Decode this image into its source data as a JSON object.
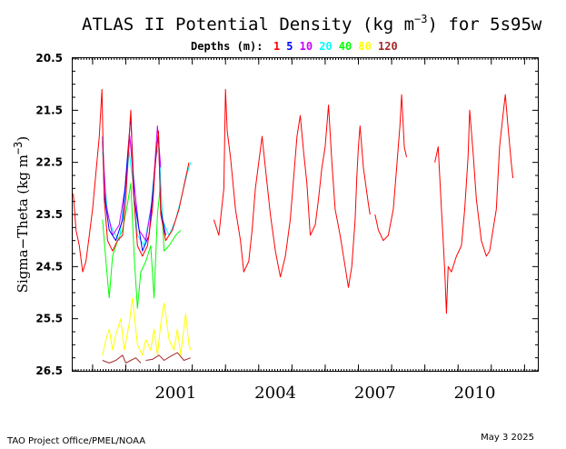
{
  "chart_data": {
    "type": "line",
    "title_prefix": "ATLAS II Potential Density (kg m",
    "title_exp": "−3",
    "title_suffix": ") for 5s95w",
    "ylabel_prefix": "Sigma−Theta (kg m",
    "ylabel_exp": "−3",
    "ylabel_suffix": ")",
    "depth_label": "Depths (m):",
    "ylim": [
      26.5,
      20.5
    ],
    "y_inverted": true,
    "y_ticks": [
      "20.5",
      "21.5",
      "22.5",
      "23.5",
      "24.5",
      "25.5",
      "26.5"
    ],
    "xlim": [
      1998.4,
      2012.4
    ],
    "x_ticks": [
      "2001",
      "2004",
      "2007",
      "2010"
    ],
    "series": [
      {
        "name": "1",
        "color": "#ff0000",
        "segments": [
          [
            [
              1998.42,
              23.1
            ],
            [
              1998.5,
              23.8
            ],
            [
              1998.6,
              24.1
            ],
            [
              1998.7,
              24.6
            ],
            [
              1998.8,
              24.4
            ],
            [
              1998.9,
              23.9
            ],
            [
              1999.0,
              23.4
            ],
            [
              1999.1,
              22.7
            ],
            [
              1999.2,
              22.0
            ],
            [
              1999.28,
              21.1
            ],
            [
              1999.35,
              23.2
            ],
            [
              1999.45,
              24.0
            ],
            [
              1999.6,
              24.2
            ],
            [
              1999.75,
              24.0
            ],
            [
              1999.9,
              23.9
            ],
            [
              2000.0,
              23.2
            ],
            [
              2000.1,
              22.0
            ],
            [
              2000.15,
              21.5
            ],
            [
              2000.22,
              23.0
            ],
            [
              2000.35,
              24.1
            ],
            [
              2000.5,
              24.3
            ],
            [
              2000.65,
              24.1
            ],
            [
              2000.8,
              23.4
            ],
            [
              2000.9,
              22.4
            ],
            [
              2000.98,
              21.9
            ],
            [
              2001.05,
              23.5
            ],
            [
              2001.2,
              24.0
            ],
            [
              2001.4,
              23.8
            ],
            [
              2001.6,
              23.4
            ],
            [
              2001.8,
              22.8
            ],
            [
              2001.9,
              22.5
            ]
          ],
          [
            [
              2002.65,
              23.6
            ],
            [
              2002.8,
              23.9
            ],
            [
              2002.95,
              23.0
            ],
            [
              2003.0,
              21.1
            ],
            [
              2003.05,
              21.9
            ],
            [
              2003.15,
              22.4
            ],
            [
              2003.3,
              23.4
            ],
            [
              2003.45,
              24.0
            ],
            [
              2003.55,
              24.6
            ],
            [
              2003.7,
              24.4
            ],
            [
              2003.8,
              23.8
            ],
            [
              2003.9,
              23.0
            ],
            [
              2004.0,
              22.5
            ],
            [
              2004.1,
              22.0
            ],
            [
              2004.2,
              22.6
            ],
            [
              2004.35,
              23.5
            ],
            [
              2004.5,
              24.2
            ],
            [
              2004.65,
              24.7
            ],
            [
              2004.8,
              24.3
            ],
            [
              2004.95,
              23.6
            ],
            [
              2005.05,
              22.8
            ],
            [
              2005.15,
              22.0
            ],
            [
              2005.25,
              21.6
            ],
            [
              2005.35,
              22.3
            ],
            [
              2005.45,
              22.9
            ],
            [
              2005.55,
              23.9
            ],
            [
              2005.7,
              23.7
            ],
            [
              2005.8,
              23.2
            ],
            [
              2005.9,
              22.6
            ],
            [
              2006.0,
              22.2
            ],
            [
              2006.1,
              21.4
            ],
            [
              2006.2,
              22.5
            ],
            [
              2006.3,
              23.4
            ],
            [
              2006.45,
              23.9
            ],
            [
              2006.6,
              24.5
            ],
            [
              2006.7,
              24.9
            ],
            [
              2006.8,
              24.5
            ],
            [
              2006.9,
              23.6
            ],
            [
              2006.95,
              22.8
            ],
            [
              2007.0,
              22.2
            ],
            [
              2007.05,
              21.8
            ],
            [
              2007.15,
              22.6
            ],
            [
              2007.3,
              23.3
            ],
            [
              2007.35,
              23.5
            ]
          ],
          [
            [
              2007.5,
              23.5
            ],
            [
              2007.6,
              23.8
            ],
            [
              2007.75,
              24.0
            ],
            [
              2007.9,
              23.9
            ],
            [
              2008.05,
              23.4
            ],
            [
              2008.15,
              22.6
            ],
            [
              2008.25,
              21.8
            ],
            [
              2008.3,
              21.2
            ],
            [
              2008.38,
              22.2
            ],
            [
              2008.45,
              22.4
            ]
          ],
          [
            [
              2009.3,
              22.5
            ],
            [
              2009.4,
              22.2
            ],
            [
              2009.5,
              23.4
            ],
            [
              2009.55,
              24.0
            ],
            [
              2009.6,
              24.6
            ],
            [
              2009.65,
              25.4
            ],
            [
              2009.7,
              24.5
            ],
            [
              2009.8,
              24.6
            ],
            [
              2009.95,
              24.3
            ],
            [
              2010.1,
              24.1
            ],
            [
              2010.2,
              23.4
            ],
            [
              2010.3,
              22.4
            ],
            [
              2010.35,
              21.5
            ],
            [
              2010.45,
              22.3
            ],
            [
              2010.55,
              23.2
            ],
            [
              2010.7,
              24.0
            ],
            [
              2010.85,
              24.3
            ],
            [
              2010.95,
              24.2
            ],
            [
              2011.05,
              23.8
            ],
            [
              2011.15,
              23.4
            ],
            [
              2011.25,
              22.2
            ],
            [
              2011.35,
              21.6
            ],
            [
              2011.42,
              21.2
            ],
            [
              2011.5,
              21.8
            ],
            [
              2011.6,
              22.5
            ],
            [
              2011.65,
              22.8
            ]
          ]
        ]
      },
      {
        "name": "5",
        "color": "#0000ff",
        "segments": [
          [
            [
              1999.3,
              22.0
            ],
            [
              1999.35,
              23.1
            ],
            [
              1999.5,
              23.8
            ],
            [
              1999.7,
              24.0
            ],
            [
              1999.9,
              23.6
            ],
            [
              2000.05,
              22.4
            ],
            [
              2000.15,
              21.6
            ],
            [
              2000.25,
              23.2
            ],
            [
              2000.5,
              24.2
            ],
            [
              2000.7,
              23.9
            ],
            [
              2000.85,
              22.8
            ],
            [
              2000.98,
              21.9
            ],
            [
              2001.05,
              23.4
            ],
            [
              2001.2,
              23.9
            ]
          ]
        ]
      },
      {
        "name": "10",
        "color": "#cc00ff",
        "segments": [
          [
            [
              1999.3,
              22.1
            ],
            [
              1999.4,
              23.3
            ],
            [
              1999.6,
              23.9
            ],
            [
              1999.8,
              23.7
            ],
            [
              2000.0,
              22.9
            ],
            [
              2000.12,
              22.0
            ],
            [
              2000.2,
              22.6
            ],
            [
              2000.4,
              23.8
            ],
            [
              2000.6,
              24.0
            ],
            [
              2000.8,
              23.2
            ],
            [
              2000.95,
              21.8
            ],
            [
              2001.05,
              22.6
            ]
          ]
        ]
      },
      {
        "name": "20",
        "color": "#00ffff",
        "segments": [
          [
            [
              1999.3,
              22.3
            ],
            [
              1999.45,
              23.5
            ],
            [
              1999.6,
              23.8
            ],
            [
              1999.8,
              24.0
            ],
            [
              2000.0,
              23.0
            ],
            [
              2000.1,
              22.3
            ],
            [
              2000.2,
              22.8
            ],
            [
              2000.35,
              23.9
            ],
            [
              2000.55,
              24.1
            ],
            [
              2000.75,
              23.4
            ],
            [
              2000.9,
              22.4
            ],
            [
              2001.0,
              22.2
            ],
            [
              2001.1,
              23.6
            ],
            [
              2001.3,
              23.9
            ],
            [
              2001.5,
              23.6
            ],
            [
              2001.7,
              23.1
            ],
            [
              2001.85,
              22.7
            ],
            [
              2001.95,
              22.5
            ]
          ]
        ]
      },
      {
        "name": "40",
        "color": "#00ff00",
        "segments": [
          [
            [
              1999.3,
              23.6
            ],
            [
              1999.4,
              24.4
            ],
            [
              1999.5,
              25.1
            ],
            [
              1999.6,
              24.3
            ],
            [
              1999.75,
              24.0
            ],
            [
              1999.9,
              23.8
            ],
            [
              2000.05,
              23.3
            ],
            [
              2000.15,
              22.9
            ],
            [
              2000.25,
              24.3
            ],
            [
              2000.35,
              25.3
            ],
            [
              2000.45,
              24.6
            ],
            [
              2000.6,
              24.4
            ],
            [
              2000.75,
              24.1
            ],
            [
              2000.85,
              25.1
            ],
            [
              2000.95,
              23.5
            ],
            [
              2001.05,
              22.9
            ],
            [
              2001.15,
              24.2
            ],
            [
              2001.3,
              24.1
            ],
            [
              2001.5,
              23.9
            ],
            [
              2001.65,
              23.8
            ]
          ]
        ]
      },
      {
        "name": "80",
        "color": "#ffff00",
        "segments": [
          [
            [
              1999.3,
              26.2
            ],
            [
              1999.4,
              25.9
            ],
            [
              1999.5,
              25.7
            ],
            [
              1999.6,
              26.1
            ],
            [
              1999.7,
              25.8
            ],
            [
              1999.85,
              25.5
            ],
            [
              1999.95,
              26.1
            ],
            [
              2000.1,
              25.6
            ],
            [
              2000.2,
              25.1
            ],
            [
              2000.35,
              26.0
            ],
            [
              2000.5,
              26.2
            ],
            [
              2000.6,
              25.9
            ],
            [
              2000.75,
              26.1
            ],
            [
              2000.85,
              25.7
            ],
            [
              2000.95,
              26.2
            ],
            [
              2001.05,
              25.6
            ],
            [
              2001.15,
              25.2
            ],
            [
              2001.3,
              25.9
            ],
            [
              2001.45,
              26.1
            ],
            [
              2001.55,
              25.7
            ],
            [
              2001.65,
              26.2
            ],
            [
              2001.8,
              25.4
            ],
            [
              2001.9,
              26.0
            ],
            [
              2001.95,
              26.1
            ]
          ]
        ]
      },
      {
        "name": "120",
        "color": "#a52a2a",
        "segments": [
          [
            [
              1999.3,
              26.3
            ],
            [
              1999.5,
              26.35
            ],
            [
              1999.7,
              26.3
            ],
            [
              1999.9,
              26.2
            ],
            [
              2000.0,
              26.35
            ],
            [
              2000.15,
              26.3
            ],
            [
              2000.3,
              26.25
            ],
            [
              2000.45,
              26.35
            ]
          ],
          [
            [
              2000.6,
              26.3
            ],
            [
              2000.8,
              26.28
            ],
            [
              2001.0,
              26.2
            ],
            [
              2001.15,
              26.3
            ],
            [
              2001.35,
              26.22
            ],
            [
              2001.55,
              26.15
            ],
            [
              2001.75,
              26.3
            ],
            [
              2001.95,
              26.25
            ]
          ]
        ]
      }
    ]
  },
  "footer": {
    "credit": "TAO Project Office/PMEL/NOAA",
    "date": "May  3 2025"
  }
}
